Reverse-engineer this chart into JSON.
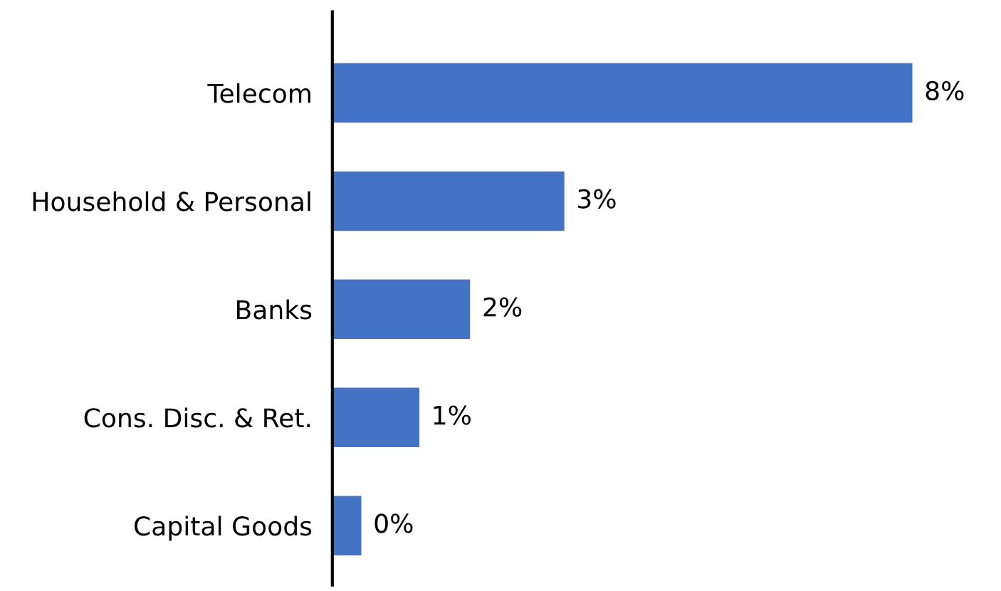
{
  "chart_data": {
    "type": "bar",
    "orientation": "horizontal",
    "categories": [
      "Telecom",
      "Household & Personal",
      "Banks",
      "Cons. Disc. & Ret.",
      "Capital Goods"
    ],
    "values": [
      8,
      3.2,
      1.9,
      1.2,
      0.4
    ],
    "value_labels": [
      "8%",
      "3%",
      "2%",
      "1%",
      "0%"
    ],
    "color": "#4472c4",
    "grid": false,
    "legend": false
  }
}
